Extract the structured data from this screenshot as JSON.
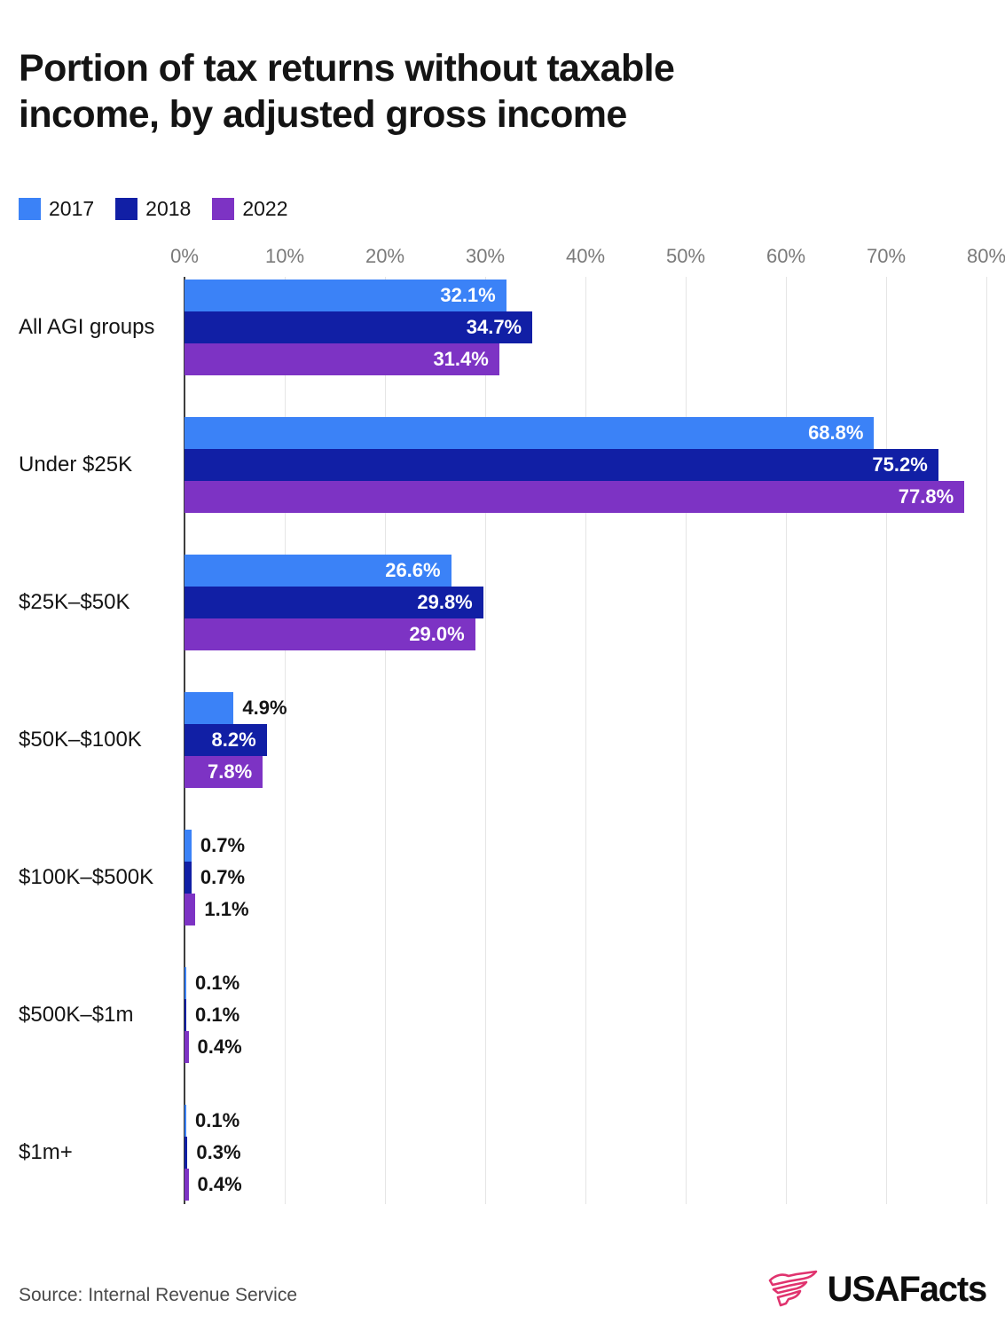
{
  "title": "Portion of tax returns without taxable income, by adjusted gross income",
  "legend": {
    "items": [
      {
        "label": "2017",
        "color": "#3B82F7"
      },
      {
        "label": "2018",
        "color": "#111FA5"
      },
      {
        "label": "2022",
        "color": "#7D33C4"
      }
    ]
  },
  "chart_data": {
    "type": "bar",
    "orientation": "horizontal",
    "title": "Portion of tax returns without taxable income, by adjusted gross income",
    "categories": [
      "All AGI groups",
      "Under $25K",
      "$25K–$50K",
      "$50K–$100K",
      "$100K–$500K",
      "$500K–$1m",
      "$1m+"
    ],
    "series": [
      {
        "name": "2017",
        "color": "#3B82F7",
        "values": [
          32.1,
          68.8,
          26.6,
          4.9,
          0.7,
          0.1,
          0.1
        ],
        "labels": [
          "32.1%",
          "68.8%",
          "26.6%",
          "4.9%",
          "0.7%",
          "0.1%",
          "0.1%"
        ]
      },
      {
        "name": "2018",
        "color": "#111FA5",
        "values": [
          34.7,
          75.2,
          29.8,
          8.2,
          0.7,
          0.1,
          0.3
        ],
        "labels": [
          "34.7%",
          "75.2%",
          "29.8%",
          "8.2%",
          "0.7%",
          "0.1%",
          "0.3%"
        ]
      },
      {
        "name": "2022",
        "color": "#7D33C4",
        "values": [
          31.4,
          77.8,
          29.0,
          7.8,
          1.1,
          0.4,
          0.4
        ],
        "labels": [
          "31.4%",
          "77.8%",
          "29.0%",
          "7.8%",
          "1.1%",
          "0.4%",
          "0.4%"
        ]
      }
    ],
    "x_axis": {
      "ticks": [
        "0%",
        "10%",
        "20%",
        "30%",
        "40%",
        "50%",
        "60%",
        "70%",
        "80%"
      ],
      "min": 0,
      "max": 80
    },
    "grid": true,
    "legend_position": "top",
    "value_label_color_inside": "#ffffff",
    "value_label_color_outside": "#141414"
  },
  "footer": {
    "source_label": "Source: Internal Revenue Service",
    "brand_name": "USAFacts",
    "brand_color": "#E0336E"
  }
}
